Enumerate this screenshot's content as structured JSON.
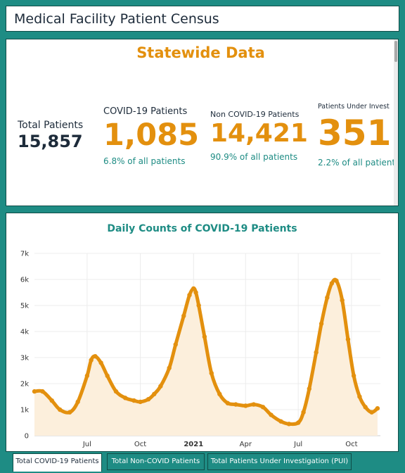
{
  "header": {
    "title": "Medical Facility Patient Census"
  },
  "stats": {
    "section_title": "Statewide Data",
    "total": {
      "label": "Total Patients",
      "value": "15,857"
    },
    "covid": {
      "label": "COVID-19 Patients",
      "value": "1,085",
      "pct": "6.8% of all patients"
    },
    "noncovid": {
      "label": "Non COVID-19 Patients",
      "value": "14,421",
      "pct": "90.9% of all patients"
    },
    "pui": {
      "label": "Patients Under Invest",
      "value": "351",
      "pct": "2.2% of all patients"
    }
  },
  "colors": {
    "accent": "#e3900e",
    "teal": "#1e8c84",
    "navy": "#1d2b3a",
    "fill": "#fcefdc"
  },
  "chart_data": {
    "type": "area",
    "title": "Daily Counts of COVID-19 Patients",
    "ylim": [
      0,
      7000
    ],
    "y_ticks": [
      "0",
      "1k",
      "2k",
      "3k",
      "4k",
      "5k",
      "6k",
      "7k"
    ],
    "x_ticks": [
      "Jul",
      "Oct",
      "2021",
      "Apr",
      "Jul",
      "Oct"
    ],
    "grid": true,
    "series": [
      {
        "x": [
          "2020-04-01",
          "2020-04-15",
          "2020-05-01",
          "2020-05-15",
          "2020-06-01",
          "2020-06-15",
          "2020-07-01",
          "2020-07-08",
          "2020-07-15",
          "2020-07-25",
          "2020-08-05",
          "2020-08-20",
          "2020-09-05",
          "2020-09-20",
          "2020-10-01",
          "2020-10-15",
          "2020-10-25",
          "2020-11-05",
          "2020-11-20",
          "2020-12-01",
          "2020-12-15",
          "2020-12-25",
          "2021-01-01",
          "2021-01-05",
          "2021-01-10",
          "2021-01-20",
          "2021-02-01",
          "2021-02-15",
          "2021-03-01",
          "2021-03-15",
          "2021-04-01",
          "2021-04-15",
          "2021-05-01",
          "2021-05-15",
          "2021-06-01",
          "2021-06-15",
          "2021-07-01",
          "2021-07-10",
          "2021-07-20",
          "2021-08-01",
          "2021-08-10",
          "2021-08-20",
          "2021-08-28",
          "2021-09-05",
          "2021-09-15",
          "2021-09-25",
          "2021-10-05",
          "2021-10-15",
          "2021-10-25",
          "2021-11-05",
          "2021-11-15"
        ],
        "values": [
          1700,
          1700,
          1350,
          1000,
          900,
          1300,
          2300,
          2900,
          3050,
          2800,
          2300,
          1700,
          1450,
          1350,
          1300,
          1400,
          1600,
          1900,
          2600,
          3500,
          4600,
          5400,
          5650,
          5500,
          5000,
          3800,
          2400,
          1600,
          1250,
          1200,
          1150,
          1200,
          1100,
          800,
          550,
          450,
          500,
          900,
          1800,
          3200,
          4300,
          5300,
          5850,
          5950,
          5200,
          3700,
          2300,
          1500,
          1100,
          900,
          1050
        ]
      }
    ]
  },
  "tabs": [
    {
      "label": "Total COVID-19 Patients",
      "active": true
    },
    {
      "label": "Total Non-COVID Patients",
      "active": false
    },
    {
      "label": "Total Patients Under Investigation (PUI)",
      "active": false
    }
  ]
}
